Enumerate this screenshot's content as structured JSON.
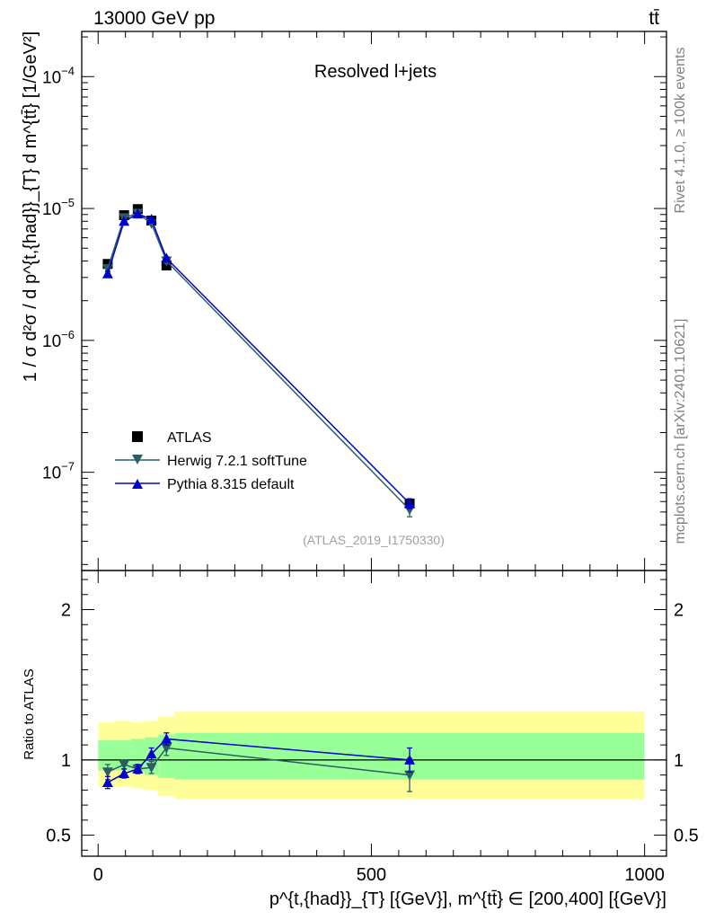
{
  "header": {
    "energy_label": "13000 GeV pp",
    "process_label": "tt̄"
  },
  "side_labels": {
    "rivet": "Rivet 4.1.0, ≥ 100k events",
    "mcplots": "mcplots.cern.ch [arXiv:2401.10621]"
  },
  "chart_data": [
    {
      "type": "scatter",
      "panel": "main",
      "title": "Resolved l+jets",
      "watermark": "(ATLAS_2019_I1750330)",
      "ylabel": "1 / σ d²σ / d p^{t,{had}}_{T} d m^{tt̄} [1/GeV²]",
      "yscale": "log",
      "ylim": [
        1.8e-08,
        0.00022
      ],
      "xlim": [
        -30,
        1040
      ],
      "y_ticks": [
        {
          "value": 0.0001,
          "label": "10−4"
        },
        {
          "value": 1e-05,
          "label": "10−5"
        },
        {
          "value": 1e-06,
          "label": "10−6"
        },
        {
          "value": 1e-07,
          "label": "10−7"
        }
      ],
      "legend": {
        "placement": "lower-left",
        "entries": [
          "ATLAS",
          "Herwig 7.2.1 softTune",
          "Pythia 8.315 default"
        ]
      },
      "series": [
        {
          "name": "ATLAS",
          "marker": "square",
          "color": "#000000",
          "x": [
            17.5,
            47.5,
            72.5,
            97.5,
            125,
            570
          ],
          "values": [
            3.8e-06,
            8.9e-06,
            9.9e-06,
            8.1e-06,
            3.7e-06,
            5.8e-08
          ]
        },
        {
          "name": "Herwig 7.2.1 softTune",
          "marker": "triangle-down",
          "color": "#2a5e64",
          "x": [
            17.5,
            47.5,
            72.5,
            97.5,
            125,
            570
          ],
          "values": [
            3.5e-06,
            8.5e-06,
            9.2e-06,
            7.7e-06,
            4e-06,
            5.2e-08
          ],
          "errors": [
            2e-07,
            2e-07,
            2e-07,
            2e-07,
            1.5e-07,
            6e-09
          ]
        },
        {
          "name": "Pythia 8.315 default",
          "marker": "triangle-up",
          "color": "#0000cc",
          "x": [
            17.5,
            47.5,
            72.5,
            97.5,
            125,
            570
          ],
          "values": [
            3.2e-06,
            8e-06,
            9.1e-06,
            8.3e-06,
            4.2e-06,
            5.8e-08
          ],
          "errors": [
            1.5e-07,
            1.5e-07,
            1.5e-07,
            1.5e-07,
            1e-07,
            5e-09
          ]
        }
      ]
    },
    {
      "type": "scatter",
      "panel": "ratio",
      "ylabel": "Ratio to ATLAS",
      "xlabel": "p^{t,{had}}_{T} [{GeV}], m^{tt̄} ∈ [200,400] [{GeV}]",
      "ylim": [
        0.36,
        2.26
      ],
      "xlim": [
        -30,
        1040
      ],
      "x_ticks": [
        {
          "value": 0,
          "label": "0"
        },
        {
          "value": 500,
          "label": "500"
        },
        {
          "value": 1000,
          "label": "1000"
        }
      ],
      "y_ticks": [
        {
          "value": 0.5,
          "label": "0.5"
        },
        {
          "value": 1,
          "label": "1"
        },
        {
          "value": 2,
          "label": "2"
        }
      ],
      "bands": [
        {
          "x_from": 0,
          "x_to": 30,
          "inner": [
            0.93,
            1.13
          ],
          "outer": [
            0.82,
            1.25
          ]
        },
        {
          "x_from": 30,
          "x_to": 60,
          "inner": [
            0.93,
            1.13
          ],
          "outer": [
            0.82,
            1.26
          ]
        },
        {
          "x_from": 60,
          "x_to": 85,
          "inner": [
            0.92,
            1.14
          ],
          "outer": [
            0.81,
            1.25
          ]
        },
        {
          "x_from": 85,
          "x_to": 110,
          "inner": [
            0.9,
            1.15
          ],
          "outer": [
            0.8,
            1.26
          ]
        },
        {
          "x_from": 110,
          "x_to": 140,
          "inner": [
            0.88,
            1.17
          ],
          "outer": [
            0.76,
            1.29
          ]
        },
        {
          "x_from": 140,
          "x_to": 1000,
          "inner": [
            0.87,
            1.18
          ],
          "outer": [
            0.74,
            1.32
          ]
        }
      ],
      "series": [
        {
          "name": "Herwig 7.2.1 softTune",
          "marker": "triangle-down",
          "color": "#2a5e64",
          "x": [
            17.5,
            47.5,
            72.5,
            97.5,
            125,
            570
          ],
          "values": [
            0.92,
            0.97,
            0.94,
            0.95,
            1.08,
            0.9
          ],
          "errors": [
            0.05,
            0.03,
            0.03,
            0.04,
            0.05,
            0.11
          ]
        },
        {
          "name": "Pythia 8.315 default",
          "marker": "triangle-up",
          "color": "#0000cc",
          "x": [
            17.5,
            47.5,
            72.5,
            97.5,
            125,
            570
          ],
          "values": [
            0.85,
            0.91,
            0.94,
            1.04,
            1.14,
            1.0
          ],
          "errors": [
            0.04,
            0.03,
            0.03,
            0.04,
            0.04,
            0.08
          ]
        }
      ]
    }
  ]
}
